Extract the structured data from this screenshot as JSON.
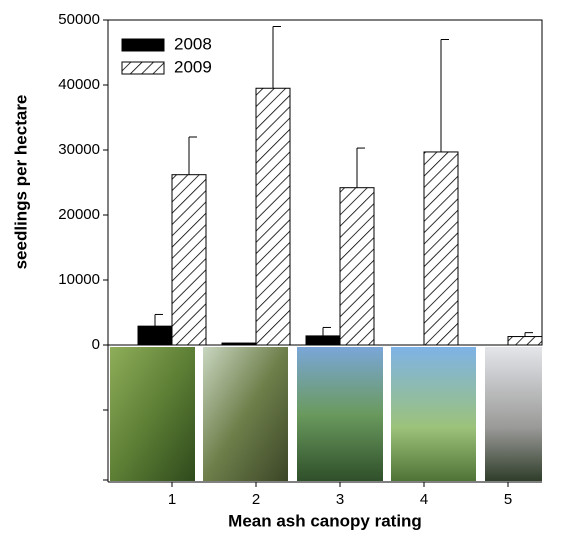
{
  "chart_data": {
    "type": "bar",
    "xlabel": "Mean ash canopy rating",
    "ylabel": "seedlings per hectare",
    "categories": [
      "1",
      "2",
      "3",
      "4",
      "5"
    ],
    "series": [
      {
        "name": "2008",
        "color": "#000000",
        "hatch": false,
        "values": [
          2900,
          300,
          1400,
          0,
          0
        ],
        "errors": [
          1800,
          null,
          1300,
          null,
          null
        ]
      },
      {
        "name": "2009",
        "color": "#ffffff",
        "hatch": true,
        "values": [
          26200,
          39500,
          24200,
          29700,
          1300
        ],
        "errors": [
          5800,
          9500,
          6100,
          17300,
          600
        ]
      }
    ],
    "ylim": [
      0,
      50000
    ],
    "yticks": [
      0,
      10000,
      20000,
      30000,
      40000,
      50000
    ],
    "legend": "upper-left"
  }
}
